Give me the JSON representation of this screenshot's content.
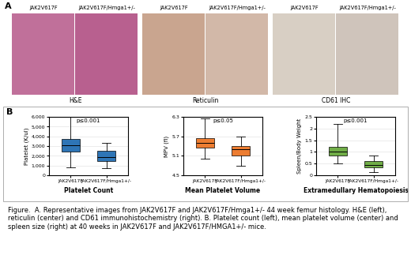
{
  "chart_data": [
    {
      "type": "box",
      "title": "Platelet Count",
      "y_label": "Platelet (K/ul)",
      "annotation": "p≤0.001",
      "categories": [
        "JAK2V617F",
        "JAK2V617F/Hmga1+/-"
      ],
      "color": "#2e75b6",
      "boxes": [
        {
          "whislo": 800,
          "q1": 2400,
          "med": 3100,
          "q3": 3700,
          "whishi": 6000
        },
        {
          "whislo": 700,
          "q1": 1500,
          "med": 1900,
          "q3": 2500,
          "whishi": 3300
        }
      ],
      "ylim": [
        0,
        6000
      ],
      "yticks": [
        0,
        {
          "value": 1000,
          "label": "1,000"
        },
        {
          "value": 2000,
          "label": "2,000"
        },
        {
          "value": 3000,
          "label": "3,000"
        },
        {
          "value": 4000,
          "label": "4,000"
        },
        {
          "value": 5000,
          "label": "5,000"
        },
        {
          "value": 6000,
          "label": "6,000"
        }
      ]
    },
    {
      "type": "box",
      "title": "Mean Platelet Volume",
      "y_label": "MPV (fl)",
      "annotation": "p≤0.05",
      "categories": [
        "JAK2V617F",
        "JAK2V617F/Hmga1+/-"
      ],
      "color": "#ed7d31",
      "boxes": [
        {
          "whislo": 5.0,
          "q1": 5.35,
          "med": 5.5,
          "q3": 5.65,
          "whishi": 6.25
        },
        {
          "whislo": 4.8,
          "q1": 5.1,
          "med": 5.3,
          "q3": 5.4,
          "whishi": 5.7
        }
      ],
      "ylim": [
        4.5,
        6.3
      ],
      "yticks": [
        4.5,
        5.1,
        5.7,
        6.3
      ]
    },
    {
      "type": "box",
      "title": "Extramedullary Hematopoiesis",
      "y_label": "Spleen/Body Weight",
      "annotation": "p≤0.001",
      "categories": [
        "JAK2V617F",
        "JAK2V617F/Hmga1+/-"
      ],
      "color": "#70ad47",
      "boxes": [
        {
          "whislo": 0.5,
          "q1": 0.85,
          "med": 1.0,
          "q3": 1.2,
          "whishi": 2.2
        },
        {
          "whislo": 0.15,
          "q1": 0.35,
          "med": 0.45,
          "q3": 0.6,
          "whishi": 0.85
        }
      ],
      "ylim": [
        0,
        2.5
      ],
      "yticks": [
        0,
        0.5,
        1,
        1.5,
        2,
        2.5
      ]
    }
  ],
  "panel_a": {
    "label": "A",
    "images": [
      {
        "left": "JAK2V617F",
        "right": "JAK2V617F/Hmga1+/-",
        "stain": "H&E"
      },
      {
        "left": "JAK2V617F",
        "right": "JAK2V617F/Hmga1+/-",
        "stain": "Reticulin"
      },
      {
        "left": "JAK2V617F",
        "right": "JAK2V617F/Hmga1+/-",
        "stain": "CD61 IHC"
      }
    ]
  },
  "panel_b": {
    "label": "B"
  },
  "caption": "Figure.  A. Representative images from JAK2V617F and JAK2V617F/Hmga1+/- 44 week femur histology. H&E (left), reticulin (center) and CD61 immunohistochemistry (right). B. Platelet count (left), mean platelet volume (center) and spleen size (right) at 40 weeks in JAK2V617F and JAK2V617F/HMGA1+/- mice."
}
